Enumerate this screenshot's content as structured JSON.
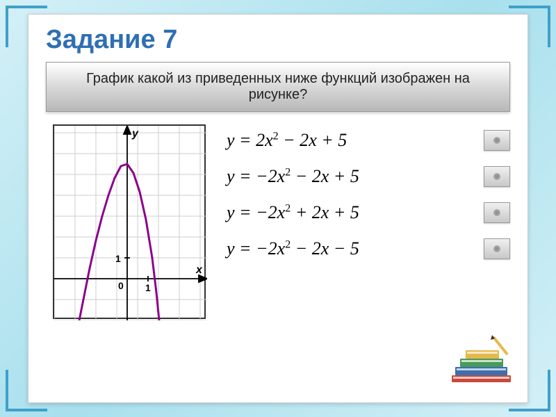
{
  "title": "Задание 7",
  "question": "График какой из приведенных ниже функций изображен на рисунке?",
  "options": [
    {
      "lhs": "y",
      "rhs_html": "2<i>x</i><sup>2</sup> − 2<i>x</i> + 5"
    },
    {
      "lhs": "y",
      "rhs_html": "−2<i>x</i><sup>2</sup> − 2<i>x</i> + 5"
    },
    {
      "lhs": "y",
      "rhs_html": "−2<i>x</i><sup>2</sup> + 2<i>x</i> + 5"
    },
    {
      "lhs": "y",
      "rhs_html": "−2<i>x</i><sup>2</sup> − 2<i>x</i> − 5"
    }
  ],
  "graph": {
    "type": "line",
    "background_color": "#ffffff",
    "grid_color": "#cccccc",
    "axis_color": "#000000",
    "curve_color": "#8b008b",
    "curve_width": 2.5,
    "xlim": [
      -3.5,
      3
    ],
    "ylim": [
      -2,
      6.2
    ],
    "xtick": [
      1
    ],
    "ytick": [
      1
    ],
    "axis_labels": {
      "x": "x",
      "y": "y"
    },
    "function_description": "downward parabola, vertex approx (-0.5, 5.5), passes near (0,5) and (1,1)",
    "sample_points": [
      [
        -2.3,
        -1.5
      ],
      [
        -2.0,
        1.0
      ],
      [
        -1.5,
        3.5
      ],
      [
        -1.0,
        5.0
      ],
      [
        -0.5,
        5.5
      ],
      [
        0.0,
        5.0
      ],
      [
        0.5,
        3.5
      ],
      [
        1.0,
        1.0
      ],
      [
        1.3,
        -1.5
      ]
    ]
  },
  "colors": {
    "page_bg_start": "#d4f0f7",
    "page_bg_mid": "#a8e0ed",
    "corner_border": "#3fa0c9",
    "title_color": "#2f6fb3",
    "question_grad_top": "#ffffff",
    "question_grad_bottom": "#b8b8b8",
    "button_grad_top": "#f0f0f0",
    "button_grad_bottom": "#c8c8c8"
  },
  "books": {
    "colors": [
      "#c94a3b",
      "#3a6fb0",
      "#e6b84a",
      "#4a9a5a"
    ],
    "pencil_color": "#e6b84a"
  }
}
